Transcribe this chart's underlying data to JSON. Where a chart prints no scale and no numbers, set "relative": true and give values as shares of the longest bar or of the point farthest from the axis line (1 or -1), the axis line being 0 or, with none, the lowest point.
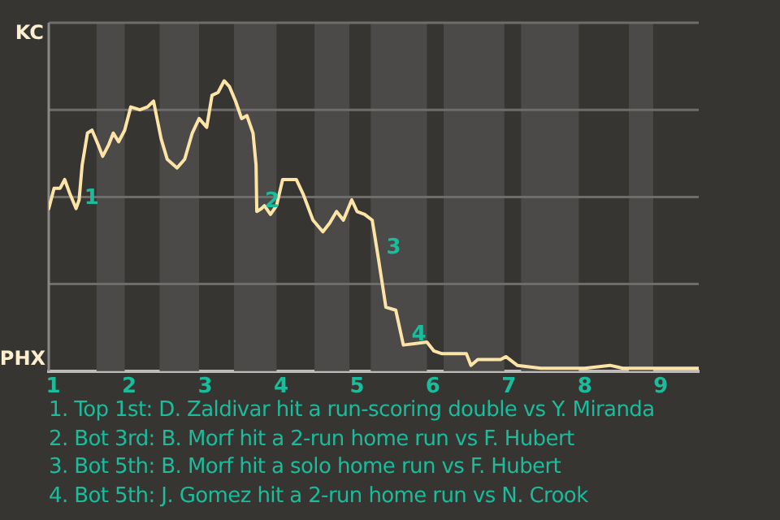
{
  "chart_data": {
    "type": "line",
    "relative": true,
    "x": [
      0.94,
      1.01,
      1.09,
      1.15,
      1.22,
      1.3,
      1.34,
      1.38,
      1.45,
      1.51,
      1.59,
      1.65,
      1.73,
      1.79,
      1.86,
      1.94,
      2.02,
      2.14,
      2.24,
      2.32,
      2.42,
      2.5,
      2.63,
      2.73,
      2.83,
      2.92,
      3.02,
      3.09,
      3.17,
      3.25,
      3.32,
      3.4,
      3.48,
      3.55,
      3.63,
      3.67,
      3.68,
      3.74,
      3.78,
      3.86,
      3.94,
      4.02,
      4.2,
      4.29,
      4.42,
      4.55,
      4.64,
      4.73,
      4.82,
      4.93,
      5.0,
      5.1,
      5.2,
      5.28,
      5.38,
      5.51,
      5.61,
      5.92,
      6.01,
      6.12,
      6.23,
      6.44,
      6.5,
      6.59,
      6.89,
      6.96,
      7.11,
      7.42,
      7.59,
      8.0,
      8.33,
      8.5,
      9.0,
      9.17,
      9.5
    ],
    "series": [
      {
        "color": "#fce4a6",
        "values": [
          0.56,
          0.63,
          0.63,
          0.66,
          0.61,
          0.56,
          0.59,
          0.71,
          0.82,
          0.83,
          0.78,
          0.74,
          0.78,
          0.82,
          0.79,
          0.83,
          0.91,
          0.9,
          0.91,
          0.93,
          0.8,
          0.73,
          0.7,
          0.73,
          0.82,
          0.87,
          0.84,
          0.95,
          0.96,
          1,
          0.98,
          0.93,
          0.87,
          0.88,
          0.82,
          0.71,
          0.55,
          0.56,
          0.57,
          0.54,
          0.57,
          0.66,
          0.66,
          0.61,
          0.52,
          0.48,
          0.51,
          0.55,
          0.52,
          0.59,
          0.55,
          0.54,
          0.52,
          0.39,
          0.22,
          0.21,
          0.09,
          0.1,
          0.07,
          0.06,
          0.06,
          0.06,
          0.02,
          0.04,
          0.04,
          0.05,
          0.02,
          0.01,
          0.01,
          0.01,
          0.02,
          0.01,
          0.01,
          0.01,
          0.01
        ]
      }
    ],
    "xlim": [
      0.94,
      9.5
    ],
    "xticks": [
      1,
      2,
      3,
      4,
      5,
      6,
      7,
      8,
      9
    ],
    "grid": "y",
    "legend": false,
    "marker": "none",
    "line_style": "solid",
    "bands": [
      {
        "axis": "x",
        "from": 1.57,
        "to": 1.94,
        "color": "#4b4a48"
      },
      {
        "axis": "x",
        "from": 2.4,
        "to": 2.92,
        "color": "#4b4a48"
      },
      {
        "axis": "x",
        "from": 3.38,
        "to": 3.94,
        "color": "#4b4a48"
      },
      {
        "axis": "x",
        "from": 4.44,
        "to": 4.9,
        "color": "#4b4a48"
      },
      {
        "axis": "x",
        "from": 5.18,
        "to": 5.92,
        "color": "#4b4a48"
      },
      {
        "axis": "x",
        "from": 6.14,
        "to": 6.94,
        "color": "#4b4a48"
      },
      {
        "axis": "x",
        "from": 7.16,
        "to": 7.92,
        "color": "#4b4a48"
      },
      {
        "axis": "x",
        "from": 8.58,
        "to": 8.9,
        "color": "#4b4a48"
      }
    ],
    "annotations": [
      "KC",
      "PHX",
      {
        "text": "1",
        "x": 1.3,
        "y": 0.56
      },
      {
        "text": "2",
        "x": 3.68,
        "y": 0.55
      },
      {
        "text": "3",
        "x": 5.28,
        "y": 0.39
      },
      {
        "text": "4",
        "x": 5.61,
        "y": 0.09
      },
      "1. Top 1st: D. Zaldivar hit a run-scoring double vs Y. Miranda",
      "2. Bot 3rd: B. Morf hit a 2-run home run vs F. Hubert",
      "3. Bot 5th: B. Morf hit a solo home run vs F. Hubert",
      "4. Bot 5th: J. Gomez hit a 2-run home run vs N. Crook"
    ]
  }
}
